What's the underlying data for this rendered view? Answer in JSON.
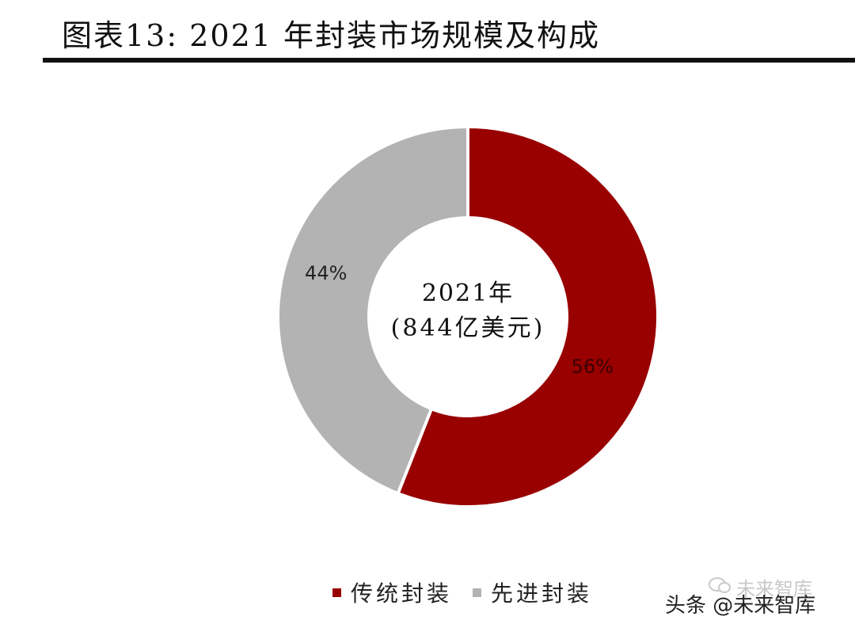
{
  "header": {
    "title": "图表13:  2021 年封装市场规模及构成"
  },
  "chart_data": {
    "type": "pie",
    "donut": true,
    "start": "top (12 o'clock), clockwise",
    "center_label": {
      "line1": "2021年",
      "line2": "(844亿美元)"
    },
    "slices": [
      {
        "name": "传统封装",
        "value": 56,
        "label": "56%",
        "color": "#990000"
      },
      {
        "name": "先进封装",
        "value": 44,
        "label": "44%",
        "color": "#b3b3b3"
      }
    ],
    "legend_position": "bottom"
  },
  "watermark": {
    "top": "未来智库",
    "bottom": "头条 @未来智库"
  }
}
